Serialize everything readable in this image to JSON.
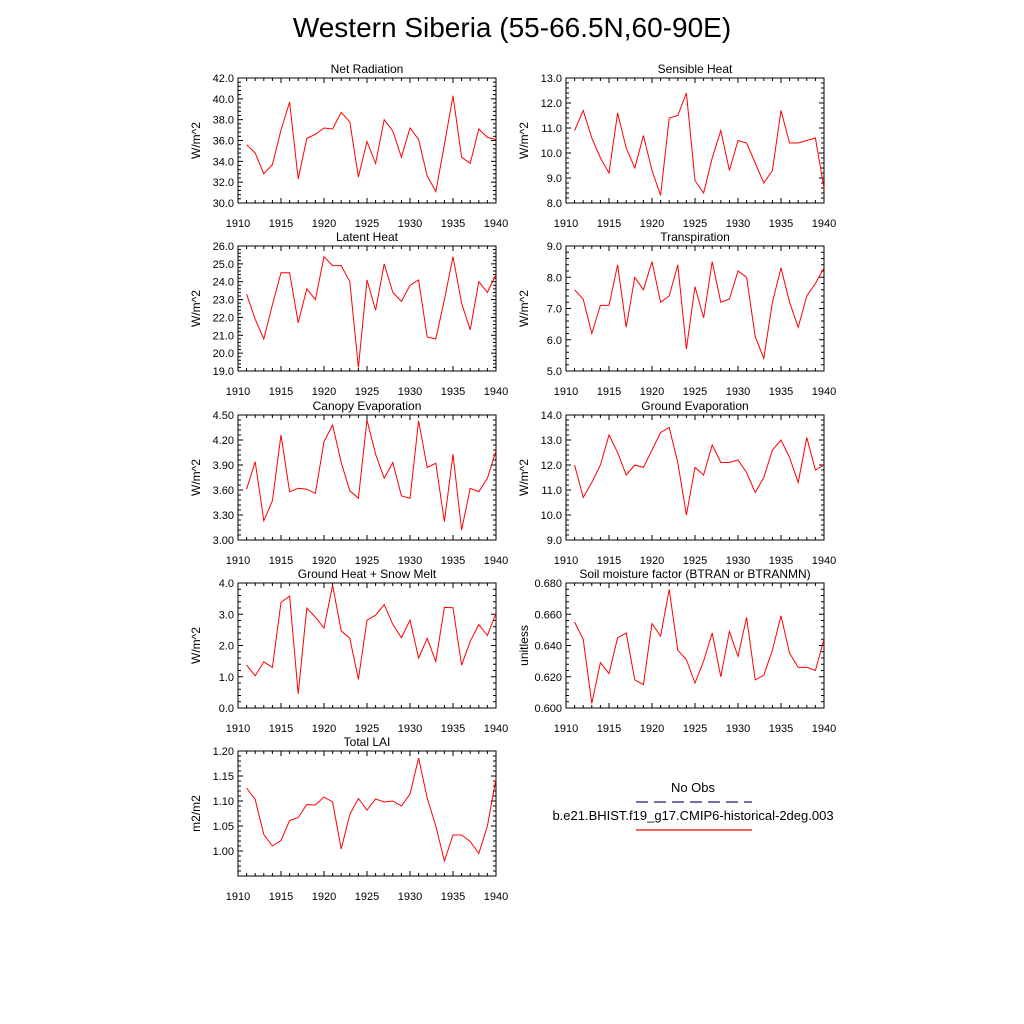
{
  "title": "Western Siberia (55-66.5N,60-90E)",
  "colors": {
    "series": "#ff0000",
    "obs": "#1a1a8c",
    "axis": "#000000"
  },
  "legend": {
    "obs_label": "No Obs",
    "model_label": "b.e21.BHIST.f19_g17.CMIP6-historical-2deg.003"
  },
  "chart_data": [
    {
      "type": "line",
      "title": "Net Radiation",
      "xlabel": "",
      "ylabel": "W/m^2",
      "xlim": [
        1910,
        1940
      ],
      "ylim": [
        30,
        42
      ],
      "xticks": [
        "1910",
        "1915",
        "1920",
        "1925",
        "1930",
        "1935",
        "1940"
      ],
      "yticks": [
        "30.0",
        "32.0",
        "34.0",
        "36.0",
        "38.0",
        "40.0",
        "42.0"
      ],
      "series": [
        {
          "name": "b.e21.BHIST.f19_g17.CMIP6-historical-2deg.003",
          "x": [
            1911,
            1912,
            1913,
            1914,
            1915,
            1916,
            1917,
            1918,
            1919,
            1920,
            1921,
            1922,
            1923,
            1924,
            1925,
            1926,
            1927,
            1928,
            1929,
            1930,
            1931,
            1932,
            1933,
            1934,
            1935,
            1936,
            1937,
            1938,
            1939,
            1940
          ],
          "y": [
            35.6,
            34.8,
            32.8,
            33.7,
            37.0,
            39.7,
            32.3,
            36.2,
            36.6,
            37.2,
            37.1,
            38.7,
            37.8,
            32.5,
            35.9,
            33.8,
            38.0,
            36.9,
            34.4,
            37.2,
            36.1,
            32.6,
            31.1,
            35.6,
            40.3,
            34.4,
            33.8,
            37.1,
            36.3,
            36.1
          ]
        }
      ],
      "grid": false
    },
    {
      "type": "line",
      "title": "Sensible Heat",
      "xlabel": "",
      "ylabel": "W/m^2",
      "xlim": [
        1910,
        1940
      ],
      "ylim": [
        8,
        13
      ],
      "xticks": [
        "1910",
        "1915",
        "1920",
        "1925",
        "1930",
        "1935",
        "1940"
      ],
      "yticks": [
        "8.0",
        "9.0",
        "10.0",
        "11.0",
        "12.0",
        "13.0"
      ],
      "series": [
        {
          "name": "b.e21.BHIST.f19_g17.CMIP6-historical-2deg.003",
          "x": [
            1911,
            1912,
            1913,
            1914,
            1915,
            1916,
            1917,
            1918,
            1919,
            1920,
            1921,
            1922,
            1923,
            1924,
            1925,
            1926,
            1927,
            1928,
            1929,
            1930,
            1931,
            1932,
            1933,
            1934,
            1935,
            1936,
            1937,
            1938,
            1939,
            1940
          ],
          "y": [
            10.9,
            11.7,
            10.6,
            9.8,
            9.2,
            11.6,
            10.2,
            9.4,
            10.7,
            9.3,
            8.3,
            11.4,
            11.5,
            12.4,
            8.9,
            8.4,
            9.8,
            10.9,
            9.3,
            10.5,
            10.4,
            9.6,
            8.8,
            9.3,
            11.7,
            10.4,
            10.4,
            10.5,
            10.6,
            8.6
          ]
        }
      ],
      "grid": false
    },
    {
      "type": "line",
      "title": "Latent Heat",
      "xlabel": "",
      "ylabel": "W/m^2",
      "xlim": [
        1910,
        1940
      ],
      "ylim": [
        19,
        26
      ],
      "xticks": [
        "1910",
        "1915",
        "1920",
        "1925",
        "1930",
        "1935",
        "1940"
      ],
      "yticks": [
        "19.0",
        "20.0",
        "21.0",
        "22.0",
        "23.0",
        "24.0",
        "25.0",
        "26.0"
      ],
      "series": [
        {
          "name": "b.e21.BHIST.f19_g17.CMIP6-historical-2deg.003",
          "x": [
            1911,
            1912,
            1913,
            1914,
            1915,
            1916,
            1917,
            1918,
            1919,
            1920,
            1921,
            1922,
            1923,
            1924,
            1925,
            1926,
            1927,
            1928,
            1929,
            1930,
            1931,
            1932,
            1933,
            1934,
            1935,
            1936,
            1937,
            1938,
            1939,
            1940
          ],
          "y": [
            23.3,
            21.9,
            20.8,
            22.7,
            24.5,
            24.5,
            21.7,
            23.6,
            23.0,
            25.4,
            24.9,
            24.9,
            24.0,
            19.2,
            24.1,
            22.4,
            25.0,
            23.4,
            22.9,
            23.8,
            24.1,
            20.9,
            20.8,
            23.0,
            25.4,
            22.8,
            21.3,
            24.0,
            23.4,
            24.4
          ]
        }
      ],
      "grid": false
    },
    {
      "type": "line",
      "title": "Transpiration",
      "xlabel": "",
      "ylabel": "W/m^2",
      "xlim": [
        1910,
        1940
      ],
      "ylim": [
        5,
        9
      ],
      "xticks": [
        "1910",
        "1915",
        "1920",
        "1925",
        "1930",
        "1935",
        "1940"
      ],
      "yticks": [
        "5.0",
        "6.0",
        "7.0",
        "8.0",
        "9.0"
      ],
      "series": [
        {
          "name": "b.e21.BHIST.f19_g17.CMIP6-historical-2deg.003",
          "x": [
            1911,
            1912,
            1913,
            1914,
            1915,
            1916,
            1917,
            1918,
            1919,
            1920,
            1921,
            1922,
            1923,
            1924,
            1925,
            1926,
            1927,
            1928,
            1929,
            1930,
            1931,
            1932,
            1933,
            1934,
            1935,
            1936,
            1937,
            1938,
            1939,
            1940
          ],
          "y": [
            7.6,
            7.3,
            6.2,
            7.1,
            7.1,
            8.4,
            6.4,
            8.0,
            7.6,
            8.5,
            7.2,
            7.4,
            8.4,
            5.7,
            7.7,
            6.7,
            8.5,
            7.2,
            7.3,
            8.2,
            8.0,
            6.1,
            5.4,
            7.2,
            8.3,
            7.2,
            6.4,
            7.4,
            7.8,
            8.3
          ]
        }
      ],
      "grid": false
    },
    {
      "type": "line",
      "title": "Canopy Evaporation",
      "xlabel": "",
      "ylabel": "W/m^2",
      "xlim": [
        1910,
        1940
      ],
      "ylim": [
        3.0,
        4.5
      ],
      "xticks": [
        "1910",
        "1915",
        "1920",
        "1925",
        "1930",
        "1935",
        "1940"
      ],
      "yticks": [
        "3.00",
        "3.30",
        "3.60",
        "3.90",
        "4.20",
        "4.50"
      ],
      "series": [
        {
          "name": "b.e21.BHIST.f19_g17.CMIP6-historical-2deg.003",
          "x": [
            1911,
            1912,
            1913,
            1914,
            1915,
            1916,
            1917,
            1918,
            1919,
            1920,
            1921,
            1922,
            1923,
            1924,
            1925,
            1926,
            1927,
            1928,
            1929,
            1930,
            1931,
            1932,
            1933,
            1934,
            1935,
            1936,
            1937,
            1938,
            1939,
            1940
          ],
          "y": [
            3.61,
            3.94,
            3.23,
            3.47,
            4.26,
            3.58,
            3.62,
            3.61,
            3.56,
            4.18,
            4.38,
            3.93,
            3.59,
            3.5,
            4.44,
            4.03,
            3.74,
            3.93,
            3.53,
            3.5,
            4.43,
            3.87,
            3.92,
            3.22,
            4.03,
            3.12,
            3.62,
            3.58,
            3.74,
            4.07
          ]
        }
      ],
      "grid": false
    },
    {
      "type": "line",
      "title": "Ground Evaporation",
      "xlabel": "",
      "ylabel": "W/m^2",
      "xlim": [
        1910,
        1940
      ],
      "ylim": [
        9,
        14
      ],
      "xticks": [
        "1910",
        "1915",
        "1920",
        "1925",
        "1930",
        "1935",
        "1940"
      ],
      "yticks": [
        "9.0",
        "10.0",
        "11.0",
        "12.0",
        "13.0",
        "14.0"
      ],
      "series": [
        {
          "name": "b.e21.BHIST.f19_g17.CMIP6-historical-2deg.003",
          "x": [
            1911,
            1912,
            1913,
            1914,
            1915,
            1916,
            1917,
            1918,
            1919,
            1920,
            1921,
            1922,
            1923,
            1924,
            1925,
            1926,
            1927,
            1928,
            1929,
            1930,
            1931,
            1932,
            1933,
            1934,
            1935,
            1936,
            1937,
            1938,
            1939,
            1940
          ],
          "y": [
            12.0,
            10.7,
            11.3,
            12.0,
            13.2,
            12.5,
            11.6,
            12.0,
            11.9,
            12.6,
            13.3,
            13.5,
            12.1,
            10.0,
            11.9,
            11.6,
            12.8,
            12.1,
            12.1,
            12.2,
            11.7,
            10.9,
            11.5,
            12.6,
            13.0,
            12.3,
            11.3,
            13.1,
            11.8,
            12.0
          ]
        }
      ],
      "grid": false
    },
    {
      "type": "line",
      "title": "Ground Heat + Snow Melt",
      "xlabel": "",
      "ylabel": "W/m^2",
      "xlim": [
        1910,
        1940
      ],
      "ylim": [
        0,
        4
      ],
      "xticks": [
        "1910",
        "1915",
        "1920",
        "1925",
        "1930",
        "1935",
        "1940"
      ],
      "yticks": [
        "0.0",
        "1.0",
        "2.0",
        "3.0",
        "4.0"
      ],
      "series": [
        {
          "name": "b.e21.BHIST.f19_g17.CMIP6-historical-2deg.003",
          "x": [
            1911,
            1912,
            1913,
            1914,
            1915,
            1916,
            1917,
            1918,
            1919,
            1920,
            1921,
            1922,
            1923,
            1924,
            1925,
            1926,
            1927,
            1928,
            1929,
            1930,
            1931,
            1932,
            1933,
            1934,
            1935,
            1936,
            1937,
            1938,
            1939,
            1940
          ],
          "y": [
            1.38,
            1.03,
            1.48,
            1.3,
            3.38,
            3.58,
            0.45,
            3.2,
            2.91,
            2.56,
            3.93,
            2.47,
            2.23,
            0.92,
            2.81,
            2.97,
            3.31,
            2.68,
            2.25,
            2.81,
            1.6,
            2.23,
            1.49,
            3.22,
            3.21,
            1.37,
            2.13,
            2.67,
            2.32,
            3.04
          ]
        }
      ],
      "grid": false
    },
    {
      "type": "line",
      "title": "Soil moisture factor (BTRAN or BTRANMN)",
      "xlabel": "",
      "ylabel": "unitless",
      "xlim": [
        1910,
        1940
      ],
      "ylim": [
        0.6,
        0.68
      ],
      "xticks": [
        "1910",
        "1915",
        "1920",
        "1925",
        "1930",
        "1935",
        "1940"
      ],
      "yticks": [
        "0.600",
        "0.620",
        "0.640",
        "0.660",
        "0.680"
      ],
      "series": [
        {
          "name": "b.e21.BHIST.f19_g17.CMIP6-historical-2deg.003",
          "x": [
            1911,
            1912,
            1913,
            1914,
            1915,
            1916,
            1917,
            1918,
            1919,
            1920,
            1921,
            1922,
            1923,
            1924,
            1925,
            1926,
            1927,
            1928,
            1929,
            1930,
            1931,
            1932,
            1933,
            1934,
            1935,
            1936,
            1937,
            1938,
            1939,
            1940
          ],
          "y": [
            0.655,
            0.644,
            0.603,
            0.629,
            0.622,
            0.645,
            0.648,
            0.618,
            0.615,
            0.654,
            0.646,
            0.676,
            0.637,
            0.631,
            0.616,
            0.63,
            0.648,
            0.62,
            0.649,
            0.633,
            0.658,
            0.618,
            0.621,
            0.637,
            0.659,
            0.635,
            0.626,
            0.626,
            0.624,
            0.644
          ]
        }
      ],
      "grid": false
    },
    {
      "type": "line",
      "title": "Total LAI",
      "xlabel": "",
      "ylabel": "m2/m2",
      "xlim": [
        1910,
        1940
      ],
      "ylim": [
        0.95,
        1.2
      ],
      "xticks": [
        "1910",
        "1915",
        "1920",
        "1925",
        "1930",
        "1935",
        "1940"
      ],
      "yticks": [
        "1.00",
        "1.05",
        "1.10",
        "1.15",
        "1.20"
      ],
      "series": [
        {
          "name": "b.e21.BHIST.f19_g17.CMIP6-historical-2deg.003",
          "x": [
            1911,
            1912,
            1913,
            1914,
            1915,
            1916,
            1917,
            1918,
            1919,
            1920,
            1921,
            1922,
            1923,
            1924,
            1925,
            1926,
            1927,
            1928,
            1929,
            1930,
            1931,
            1932,
            1933,
            1934,
            1935,
            1936,
            1937,
            1938,
            1939,
            1940
          ],
          "y": [
            1.126,
            1.103,
            1.033,
            1.01,
            1.021,
            1.061,
            1.067,
            1.093,
            1.092,
            1.108,
            1.098,
            1.004,
            1.073,
            1.105,
            1.082,
            1.104,
            1.098,
            1.1,
            1.09,
            1.114,
            1.186,
            1.106,
            1.05,
            0.98,
            1.032,
            1.032,
            1.019,
            0.995,
            1.05,
            1.145
          ]
        }
      ],
      "grid": false
    }
  ]
}
